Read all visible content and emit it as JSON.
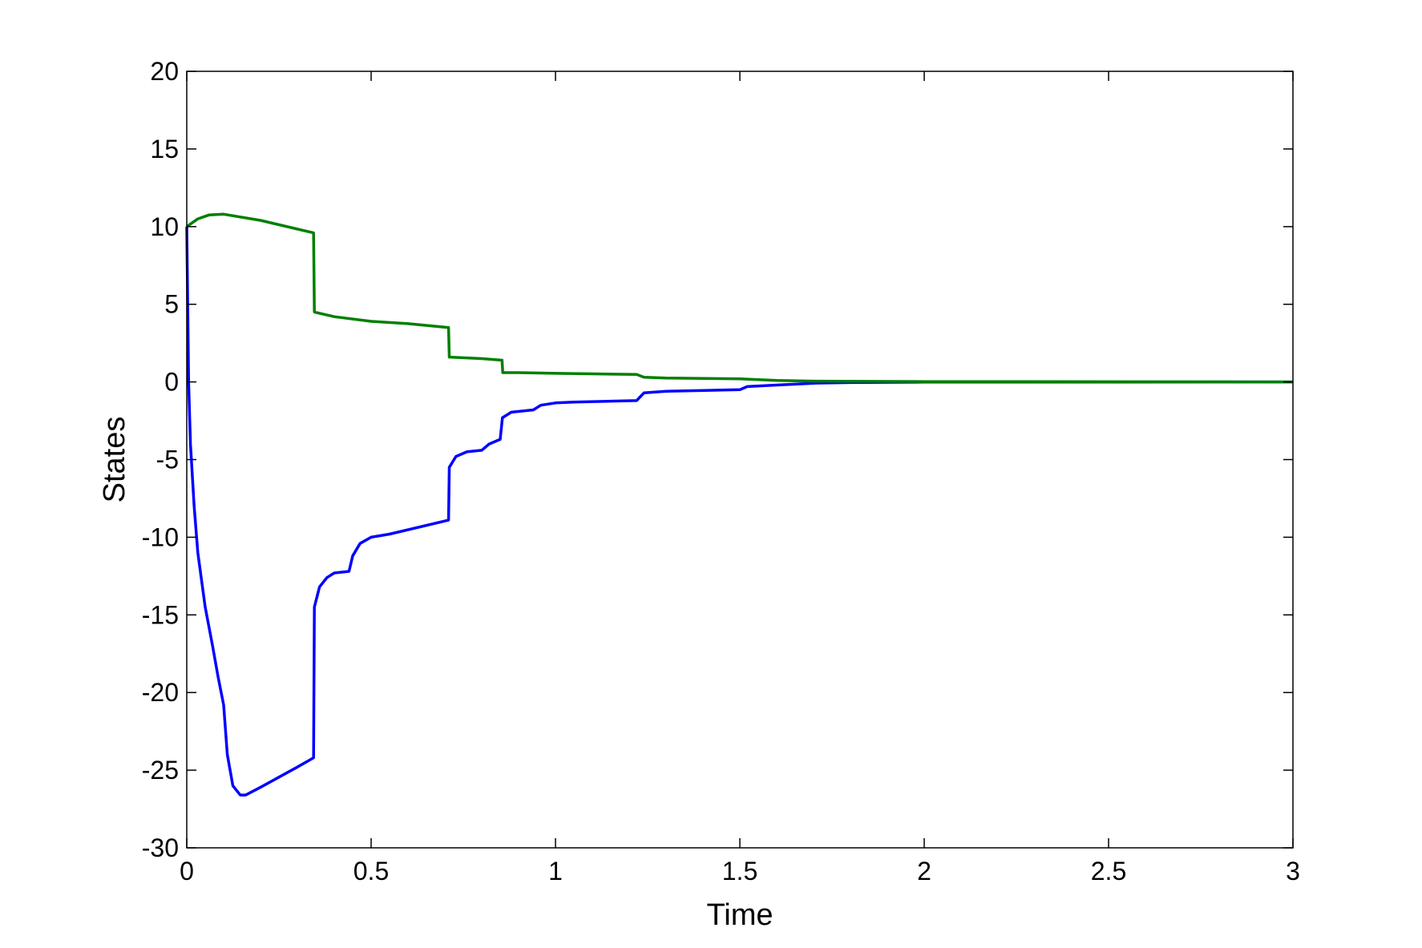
{
  "chart_data": {
    "type": "line",
    "title": "",
    "xlabel": "Time",
    "ylabel": "States",
    "xlim": [
      0,
      3
    ],
    "ylim": [
      -30,
      20
    ],
    "xticks": [
      0,
      0.5,
      1,
      1.5,
      2,
      2.5,
      3
    ],
    "xtick_labels": [
      "0",
      "0.5",
      "1",
      "1.5",
      "2",
      "2.5",
      "3"
    ],
    "yticks": [
      20,
      15,
      10,
      5,
      0,
      -5,
      -10,
      -15,
      -20,
      -25,
      -30
    ],
    "ytick_labels": [
      "20",
      "15",
      "10",
      "5",
      "0",
      "-5",
      "-10",
      "-15",
      "-20",
      "-25",
      "-30"
    ],
    "grid": false,
    "legend": "none",
    "series": [
      {
        "color": "#0000ff",
        "points": [
          [
            0,
            10
          ],
          [
            0.005,
            0
          ],
          [
            0.01,
            -4
          ],
          [
            0.02,
            -8
          ],
          [
            0.03,
            -11
          ],
          [
            0.05,
            -14.5
          ],
          [
            0.07,
            -17
          ],
          [
            0.085,
            -19
          ],
          [
            0.1,
            -20.8
          ],
          [
            0.11,
            -24
          ],
          [
            0.125,
            -26
          ],
          [
            0.145,
            -26.6
          ],
          [
            0.16,
            -26.6
          ],
          [
            0.2,
            -26.1
          ],
          [
            0.3,
            -24.8
          ],
          [
            0.344,
            -24.2
          ],
          [
            0.346,
            -14.5
          ],
          [
            0.36,
            -13.2
          ],
          [
            0.38,
            -12.6
          ],
          [
            0.4,
            -12.3
          ],
          [
            0.44,
            -12.2
          ],
          [
            0.45,
            -11.2
          ],
          [
            0.47,
            -10.4
          ],
          [
            0.5,
            -10
          ],
          [
            0.55,
            -9.8
          ],
          [
            0.71,
            -8.9
          ],
          [
            0.712,
            -5.5
          ],
          [
            0.73,
            -4.8
          ],
          [
            0.76,
            -4.5
          ],
          [
            0.8,
            -4.4
          ],
          [
            0.82,
            -4.0
          ],
          [
            0.85,
            -3.7
          ],
          [
            0.856,
            -2.3
          ],
          [
            0.88,
            -1.95
          ],
          [
            0.94,
            -1.8
          ],
          [
            0.96,
            -1.5
          ],
          [
            1.0,
            -1.35
          ],
          [
            1.05,
            -1.3
          ],
          [
            1.22,
            -1.2
          ],
          [
            1.24,
            -0.7
          ],
          [
            1.3,
            -0.6
          ],
          [
            1.5,
            -0.5
          ],
          [
            1.52,
            -0.3
          ],
          [
            1.6,
            -0.2
          ],
          [
            1.7,
            -0.08
          ],
          [
            1.8,
            -0.04
          ],
          [
            2.0,
            -0.01
          ],
          [
            3,
            0
          ]
        ]
      },
      {
        "color": "#007f00",
        "points": [
          [
            0,
            10
          ],
          [
            0.03,
            10.5
          ],
          [
            0.06,
            10.75
          ],
          [
            0.1,
            10.8
          ],
          [
            0.2,
            10.4
          ],
          [
            0.344,
            9.6
          ],
          [
            0.346,
            4.5
          ],
          [
            0.4,
            4.2
          ],
          [
            0.5,
            3.9
          ],
          [
            0.6,
            3.75
          ],
          [
            0.71,
            3.5
          ],
          [
            0.712,
            1.6
          ],
          [
            0.8,
            1.5
          ],
          [
            0.855,
            1.4
          ],
          [
            0.857,
            0.6
          ],
          [
            0.9,
            0.6
          ],
          [
            1.0,
            0.55
          ],
          [
            1.1,
            0.52
          ],
          [
            1.22,
            0.48
          ],
          [
            1.24,
            0.3
          ],
          [
            1.3,
            0.25
          ],
          [
            1.5,
            0.2
          ],
          [
            1.6,
            0.1
          ],
          [
            1.7,
            0.05
          ],
          [
            2.0,
            0.02
          ],
          [
            3,
            0
          ]
        ]
      }
    ]
  }
}
